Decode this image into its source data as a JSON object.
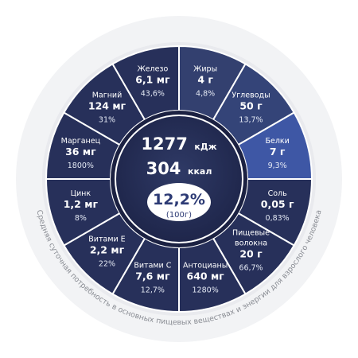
{
  "chart_data": {
    "type": "pie",
    "center": {
      "kj_value": "1277",
      "kj_unit": "кДж",
      "kcal_value": "304",
      "kcal_unit": "ккал",
      "percent": "12,2%",
      "percent_note": "(100г)"
    },
    "arc_caption": "Средняя суточная потребность в основных пищевых веществах и энергии для взрослого человека",
    "segments": [
      {
        "name": "Жиры",
        "value": "4 г",
        "percent": "4,8%",
        "color": "#33406f"
      },
      {
        "name": "Углеводы",
        "value": "50 г",
        "percent": "13,7%",
        "color": "#344478"
      },
      {
        "name": "Белки",
        "value": "7 г",
        "percent": "9,3%",
        "color": "#3e57a5"
      },
      {
        "name": "Соль",
        "value": "0,05 г",
        "percent": "0,83%",
        "color": "#27305a"
      },
      {
        "name": "Пищевые волокна",
        "value": "20 г",
        "percent": "66,7%",
        "color": "#27305a"
      },
      {
        "name": "Антоцианы",
        "value": "640 мг",
        "percent": "1280%",
        "color": "#27305a"
      },
      {
        "name": "Витами С",
        "value": "7,6 мг",
        "percent": "12,7%",
        "color": "#27305a"
      },
      {
        "name": "Витами Е",
        "value": "2,2 мг",
        "percent": "22%",
        "color": "#27305a"
      },
      {
        "name": "Цинк",
        "value": "1,2 мг",
        "percent": "8%",
        "color": "#27305a"
      },
      {
        "name": "Марганец",
        "value": "36 мг",
        "percent": "1800%",
        "color": "#27305a"
      },
      {
        "name": "Магний",
        "value": "124 мг",
        "percent": "31%",
        "color": "#27305a"
      },
      {
        "name": "Железо",
        "value": "6,1 мг",
        "percent": "43,6%",
        "color": "#27305a"
      }
    ]
  }
}
